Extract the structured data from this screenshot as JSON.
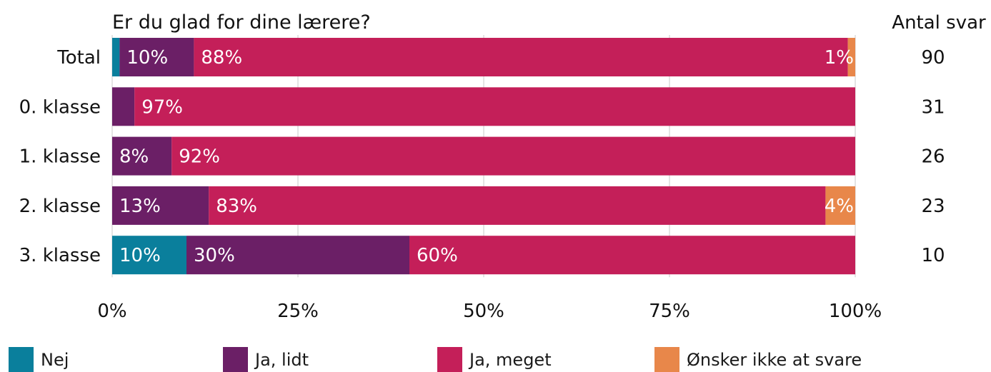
{
  "chart_data": {
    "type": "bar",
    "orientation": "horizontal",
    "stacked": true,
    "title": "Er du glad for dine lærere?",
    "count_header": "Antal svar",
    "categories": [
      "Total",
      "0. klasse",
      "1. klasse",
      "2. klasse",
      "3. klasse"
    ],
    "counts": [
      "90",
      "31",
      "26",
      "23",
      "10"
    ],
    "series": [
      {
        "name": "Nej",
        "color": "#0a7f9c",
        "values": [
          1,
          0,
          0,
          0,
          10
        ],
        "labels": [
          "",
          "",
          "",
          "",
          "10%"
        ]
      },
      {
        "name": "Ja, lidt",
        "color": "#6b1f66",
        "values": [
          10,
          3,
          8,
          13,
          30
        ],
        "labels": [
          "10%",
          "",
          "8%",
          "13%",
          "30%"
        ]
      },
      {
        "name": "Ja, meget",
        "color": "#c41f59",
        "values": [
          88,
          97,
          92,
          83,
          60
        ],
        "labels": [
          "88%",
          "97%",
          "92%",
          "83%",
          "60%"
        ]
      },
      {
        "name": "Ønsker ikke at svare",
        "color": "#e8874a",
        "values": [
          1,
          0,
          0,
          4,
          0
        ],
        "labels": [
          "1%",
          "",
          "",
          "4%",
          ""
        ]
      }
    ],
    "xlim": [
      0,
      100
    ],
    "xticks": [
      "0%",
      "25%",
      "50%",
      "75%",
      "100%"
    ],
    "grid": true,
    "legend": "bottom"
  }
}
